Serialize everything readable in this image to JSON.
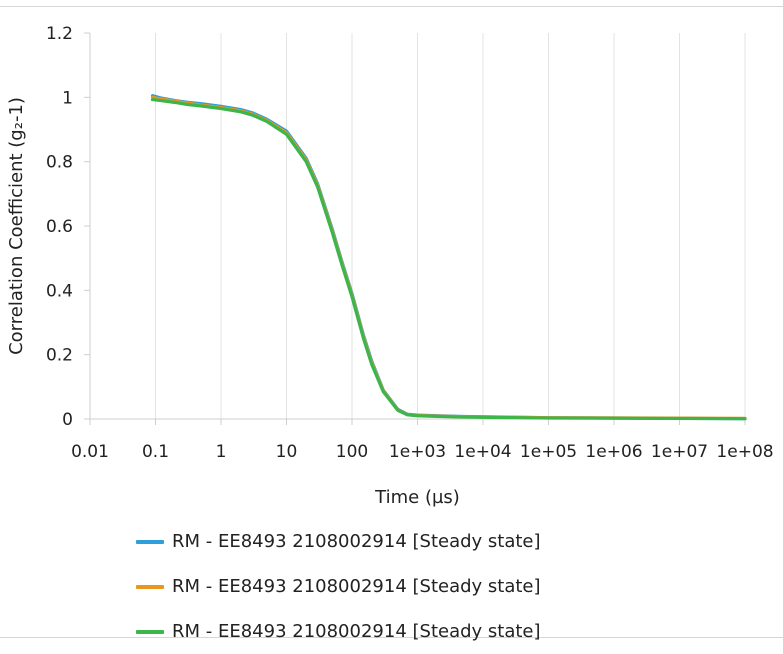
{
  "chart_data": {
    "type": "line",
    "xlabel": "Time (µs)",
    "ylabel": "Correlation Coefficient (g₂-1)",
    "x_scale": "log",
    "xlim": [
      0.01,
      100000000
    ],
    "ylim": [
      0,
      1.2
    ],
    "x_tick_values": [
      0.01,
      0.1,
      1,
      10,
      100,
      1000,
      10000,
      100000,
      1000000,
      10000000,
      100000000
    ],
    "x_tick_labels": [
      "0.01",
      "0.1",
      "1",
      "10",
      "100",
      "1e+03",
      "1e+04",
      "1e+05",
      "1e+06",
      "1e+07",
      "1e+08"
    ],
    "y_tick_values": [
      0,
      0.2,
      0.4,
      0.6,
      0.8,
      1,
      1.2
    ],
    "y_tick_labels": [
      "0",
      "0.2",
      "0.4",
      "0.6",
      "0.8",
      "1",
      "1.2"
    ],
    "grid": "vertical",
    "legend_position": "bottom",
    "series": [
      {
        "name": "RM - EE8493 2108002914 [Steady state]",
        "color": "#2e9fd8",
        "x": [
          0.09,
          0.12,
          0.2,
          0.3,
          0.5,
          1,
          2,
          3,
          5,
          10,
          20,
          30,
          50,
          70,
          100,
          150,
          200,
          300,
          500,
          700,
          1000,
          2000,
          5000,
          100000,
          100000000
        ],
        "y": [
          1.005,
          0.998,
          0.99,
          0.985,
          0.98,
          0.972,
          0.962,
          0.952,
          0.932,
          0.895,
          0.81,
          0.73,
          0.59,
          0.49,
          0.39,
          0.26,
          0.18,
          0.09,
          0.03,
          0.015,
          0.012,
          0.01,
          0.008,
          0.004,
          0.001
        ]
      },
      {
        "name": "RM - EE8493 2108002914 [Steady state]",
        "color": "#e8961e",
        "x": [
          0.09,
          0.12,
          0.2,
          0.3,
          0.5,
          1,
          2,
          3,
          5,
          10,
          20,
          30,
          50,
          70,
          100,
          150,
          200,
          300,
          500,
          700,
          1000,
          2000,
          5000,
          100000,
          100000000
        ],
        "y": [
          1.0,
          0.995,
          0.988,
          0.982,
          0.976,
          0.968,
          0.958,
          0.948,
          0.928,
          0.89,
          0.805,
          0.725,
          0.585,
          0.485,
          0.385,
          0.255,
          0.175,
          0.088,
          0.028,
          0.014,
          0.011,
          0.009,
          0.007,
          0.004,
          0.002
        ]
      },
      {
        "name": "RM - EE8493 2108002914 [Steady state]",
        "color": "#3cb54a",
        "x": [
          0.09,
          0.12,
          0.2,
          0.3,
          0.5,
          1,
          2,
          3,
          5,
          10,
          20,
          30,
          50,
          70,
          100,
          150,
          200,
          300,
          500,
          700,
          1000,
          2000,
          5000,
          100000,
          100000000
        ],
        "y": [
          0.993,
          0.99,
          0.984,
          0.978,
          0.973,
          0.965,
          0.955,
          0.945,
          0.925,
          0.885,
          0.8,
          0.72,
          0.58,
          0.48,
          0.38,
          0.25,
          0.17,
          0.085,
          0.027,
          0.013,
          0.01,
          0.008,
          0.006,
          0.003,
          0.001
        ]
      }
    ]
  }
}
